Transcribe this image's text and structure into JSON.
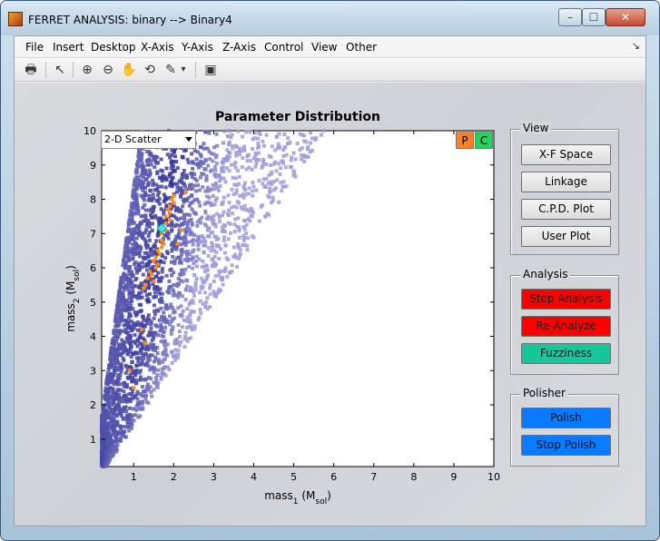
{
  "window": {
    "title": "FERRET ANALYSIS: binary --> Binary4",
    "min_glyph": "–",
    "max_glyph": "☐",
    "close_glyph": "✕"
  },
  "menu": {
    "items": [
      "File",
      "Insert",
      "Desktop",
      "X-Axis",
      "Y-Axis",
      "Z-Axis",
      "Control",
      "View",
      "Other"
    ],
    "overflow": "↘"
  },
  "toolbar": {
    "icons": [
      "print-icon",
      "pointer-icon",
      "zoom-in-icon",
      "zoom-out-icon",
      "pan-icon",
      "rotate-icon",
      "data-cursor-icon",
      "brush-dropdown-icon",
      "dock-figure-icon"
    ],
    "glyphs": [
      "🖶",
      "↖",
      "⊕",
      "⊖",
      "✋",
      "⟲",
      "✎",
      "▾",
      "▣"
    ]
  },
  "plot": {
    "dropdown_value": "2-D Scatter",
    "p_button": "P",
    "c_button": "C"
  },
  "chart_data": {
    "type": "scatter",
    "title": "Parameter Distribution",
    "xlabel": "mass1 (Msol)",
    "ylabel": "mass2 (Msol)",
    "xlim": [
      0.2,
      10
    ],
    "ylim": [
      0.2,
      10
    ],
    "xticks": [
      "1",
      "2",
      "3",
      "4",
      "5",
      "6",
      "7",
      "8",
      "9",
      "10"
    ],
    "yticks": [
      "1",
      "2",
      "3",
      "4",
      "5",
      "6",
      "7",
      "8",
      "9",
      "10"
    ],
    "series": [
      {
        "name": "density",
        "color": "#1c1c8c",
        "description_region": "triangular region m2 <= m1, concentrated near (1,1)-(2,9)"
      },
      {
        "name": "chain",
        "color": "#ff8a1a",
        "points": [
          [
            1.7,
            7.0
          ],
          [
            1.8,
            7.3
          ],
          [
            1.9,
            7.6
          ],
          [
            2.0,
            7.9
          ],
          [
            1.9,
            7.8
          ],
          [
            1.8,
            7.5
          ],
          [
            1.7,
            6.8
          ],
          [
            1.6,
            6.5
          ],
          [
            1.5,
            6.2
          ],
          [
            1.4,
            5.9
          ],
          [
            1.35,
            5.7
          ],
          [
            1.45,
            5.8
          ],
          [
            1.55,
            6.0
          ],
          [
            1.65,
            6.4
          ],
          [
            1.75,
            6.7
          ],
          [
            1.6,
            6.1
          ],
          [
            1.5,
            5.6
          ],
          [
            1.3,
            5.5
          ],
          [
            1.25,
            5.4
          ],
          [
            1.8,
            7.1
          ],
          [
            1.9,
            7.4
          ],
          [
            2.0,
            8.1
          ],
          [
            1.85,
            7.7
          ],
          [
            1.95,
            8.0
          ],
          [
            1.7,
            6.6
          ],
          [
            1.55,
            6.3
          ],
          [
            2.1,
            6.7
          ],
          [
            1.2,
            4.2
          ],
          [
            1.3,
            3.8
          ],
          [
            0.9,
            3.0
          ],
          [
            1.0,
            2.5
          ],
          [
            2.2,
            7.1
          ],
          [
            2.3,
            8.2
          ]
        ]
      },
      {
        "name": "best",
        "color": "#3ee6e6",
        "points": [
          [
            1.7,
            7.15
          ]
        ]
      }
    ]
  },
  "panels": {
    "view": {
      "title": "View",
      "buttons": [
        "X-F Space",
        "Linkage",
        "C.P.D. Plot",
        "User Plot"
      ]
    },
    "analysis": {
      "title": "Analysis",
      "buttons": [
        "Stop Analysis",
        "Re-Analyze",
        "Fuzziness"
      ]
    },
    "polisher": {
      "title": "Polisher",
      "buttons": [
        "Polish",
        "Stop Polish"
      ]
    }
  },
  "colors": {
    "analysis_red": "#ff0000",
    "fuzziness_teal": "#16c79a",
    "polish_blue": "#0a7bff",
    "p_orange": "#ff7f27",
    "c_green": "#22d45c"
  }
}
